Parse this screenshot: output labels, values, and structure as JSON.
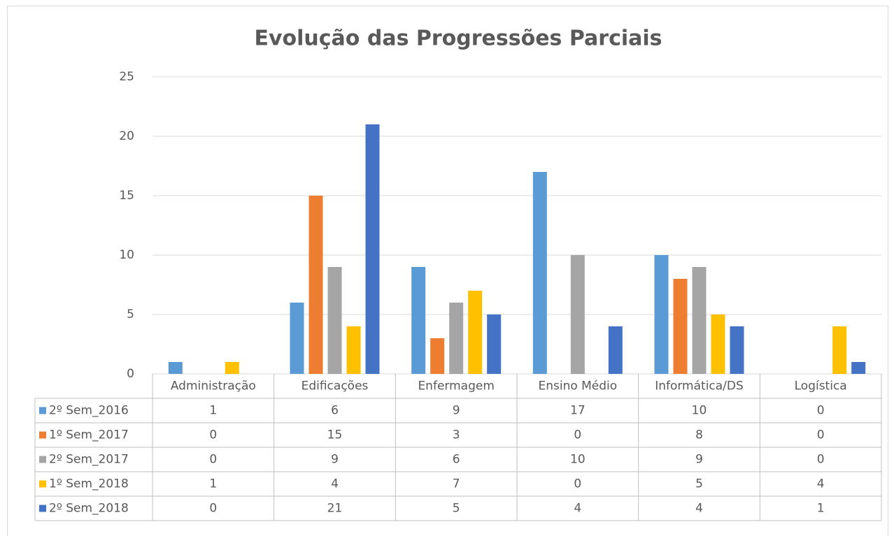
{
  "chart_data": {
    "type": "bar",
    "title": "Evolução das Progressões Parciais",
    "categories": [
      "Administração",
      "Edificações",
      "Enfermagem",
      "Ensino Médio",
      "Informática/DS",
      "Logística"
    ],
    "series": [
      {
        "name": "2º Sem_2016",
        "color": "#5b9bd5",
        "values": [
          1,
          6,
          9,
          17,
          10,
          0
        ]
      },
      {
        "name": "1º Sem_2017",
        "color": "#ed7d31",
        "values": [
          0,
          15,
          3,
          0,
          8,
          0
        ]
      },
      {
        "name": "2º Sem_2017",
        "color": "#a5a5a5",
        "values": [
          0,
          9,
          6,
          10,
          9,
          0
        ]
      },
      {
        "name": "1º Sem_2018",
        "color": "#ffc000",
        "values": [
          1,
          4,
          7,
          0,
          5,
          4
        ]
      },
      {
        "name": "2º Sem_2018",
        "color": "#4472c4",
        "values": [
          0,
          21,
          5,
          4,
          4,
          1
        ]
      }
    ],
    "ylim": [
      0,
      25
    ],
    "yticks": [
      0,
      5,
      10,
      15,
      20,
      25
    ],
    "grid": true
  }
}
